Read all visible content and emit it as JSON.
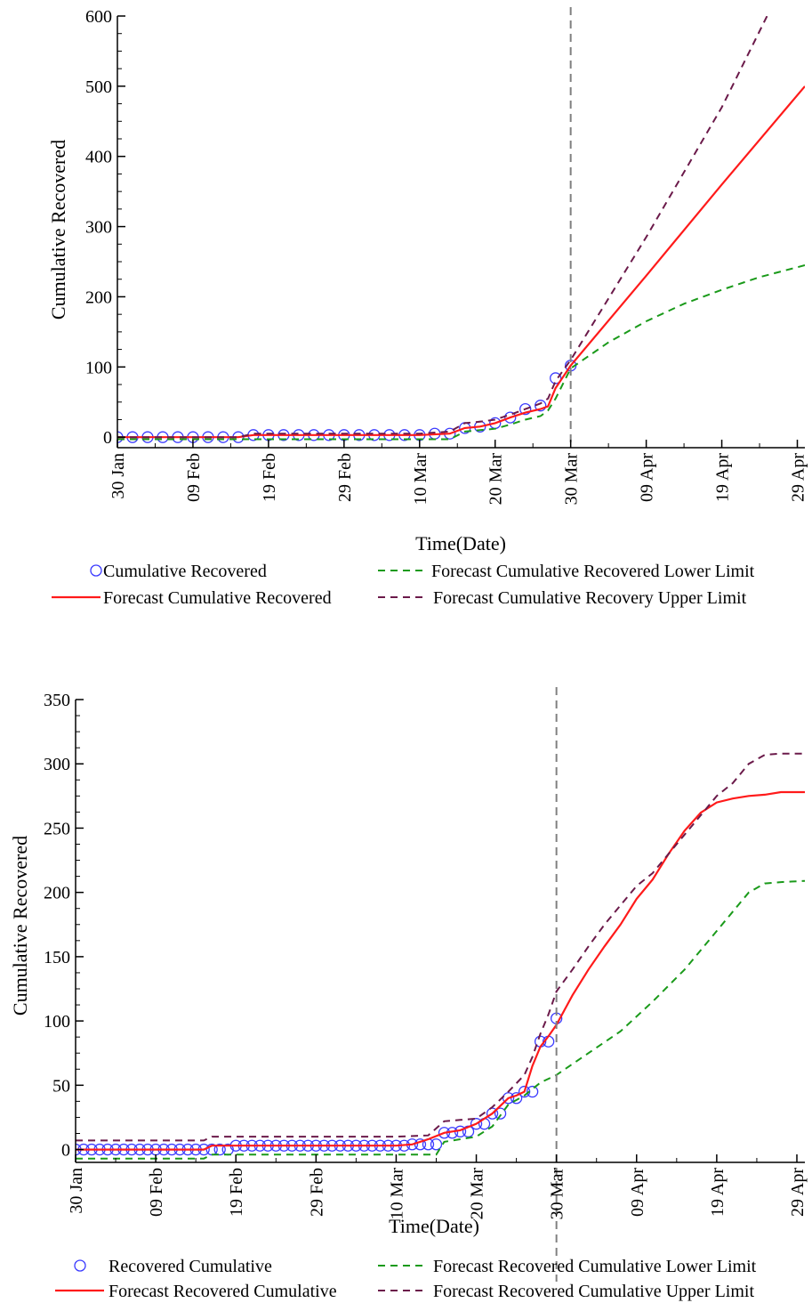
{
  "chart_data": [
    {
      "type": "line",
      "title": "",
      "xlabel": "Time(Date)",
      "ylabel": "Cumulative Recovered",
      "x_tick_labels": [
        "30 Jan",
        "09 Feb",
        "19 Feb",
        "29 Feb",
        "10 Mar",
        "20 Mar",
        "30 Mar",
        "09 Apr",
        "19 Apr",
        "29 Apr"
      ],
      "x_tick_days": [
        0,
        10,
        20,
        30,
        40,
        50,
        60,
        70,
        80,
        90
      ],
      "xlim": [
        0,
        91
      ],
      "y_ticks": [
        0,
        100,
        200,
        300,
        400,
        500,
        600
      ],
      "ylim": [
        -15,
        600
      ],
      "forecast_start_day": 60,
      "legend": [
        {
          "label": "Cumulative Recovered",
          "style": "circle"
        },
        {
          "label": "Forecast Cumulative Recovered Lower Limit",
          "style": "green-dash"
        },
        {
          "label": "Forecast Cumulative Recovered",
          "style": "red-solid"
        },
        {
          "label": "Forecast Cumulative Recovery Upper Limit",
          "style": "purple-dash"
        }
      ],
      "series": [
        {
          "name": "Cumulative Recovered",
          "kind": "points",
          "x": [
            0,
            2,
            4,
            6,
            8,
            10,
            12,
            14,
            16,
            18,
            20,
            22,
            24,
            26,
            28,
            30,
            32,
            34,
            36,
            38,
            40,
            42,
            44,
            46,
            48,
            50,
            52,
            54,
            56,
            58,
            60
          ],
          "y": [
            0,
            0,
            0,
            0,
            0,
            0,
            0,
            0,
            0,
            3,
            3,
            3,
            3,
            3,
            3,
            3,
            3,
            3,
            3,
            3,
            3,
            5,
            5,
            13,
            15,
            20,
            28,
            40,
            45,
            84,
            102
          ]
        },
        {
          "name": "Forecast Cumulative Recovered",
          "kind": "line",
          "x": [
            0,
            16,
            18,
            20,
            40,
            44,
            46,
            48,
            50,
            52,
            54,
            56,
            57,
            58,
            60,
            70,
            80,
            91
          ],
          "y": [
            0,
            0,
            3,
            3,
            3,
            5,
            13,
            15,
            20,
            28,
            35,
            40,
            44,
            70,
            102,
            230,
            360,
            500
          ]
        },
        {
          "name": "Forecast Cumulative Recovered Lower Limit",
          "kind": "line",
          "x": [
            0,
            44,
            46,
            48,
            50,
            52,
            54,
            56,
            57,
            58,
            60,
            65,
            70,
            75,
            80,
            85,
            91
          ],
          "y": [
            -3,
            -3,
            8,
            10,
            12,
            18,
            25,
            30,
            38,
            55,
            98,
            135,
            165,
            190,
            210,
            228,
            245
          ]
        },
        {
          "name": "Forecast Cumulative Recovery Upper Limit",
          "kind": "line",
          "x": [
            0,
            16,
            18,
            20,
            40,
            44,
            46,
            48,
            50,
            52,
            54,
            56,
            57,
            58,
            60,
            70,
            80,
            86
          ],
          "y": [
            0,
            0,
            5,
            5,
            5,
            8,
            20,
            22,
            25,
            32,
            40,
            48,
            55,
            80,
            110,
            285,
            470,
            600
          ]
        }
      ]
    },
    {
      "type": "line",
      "title": "",
      "xlabel": "Time(Date)",
      "ylabel": "Cumulative Recovered",
      "x_tick_labels": [
        "30 Jan",
        "09 Feb",
        "19 Feb",
        "29 Feb",
        "10 Mar",
        "20 Mar",
        "30 Mar",
        "09 Apr",
        "19 Apr",
        "29 Apr"
      ],
      "x_tick_days": [
        0,
        10,
        20,
        30,
        40,
        50,
        60,
        70,
        80,
        90
      ],
      "xlim": [
        0,
        91
      ],
      "y_ticks": [
        0,
        50,
        100,
        150,
        200,
        250,
        300,
        350
      ],
      "ylim": [
        -10,
        350
      ],
      "forecast_start_day": 60,
      "legend": [
        {
          "label": "Recovered Cumulative",
          "style": "circle"
        },
        {
          "label": "Forecast Recovered Cumulative Lower Limit",
          "style": "green-dash"
        },
        {
          "label": "Forecast Recovered Cumulative",
          "style": "red-solid"
        },
        {
          "label": "Forecast Recovered Cumulative Upper Limit",
          "style": "purple-dash"
        }
      ],
      "series": [
        {
          "name": "Recovered Cumulative",
          "kind": "points",
          "x": [
            0,
            1,
            2,
            3,
            4,
            5,
            6,
            7,
            8,
            9,
            10,
            11,
            12,
            13,
            14,
            15,
            16,
            17,
            18,
            19,
            20,
            21,
            22,
            23,
            24,
            25,
            26,
            27,
            28,
            29,
            30,
            31,
            32,
            33,
            34,
            35,
            36,
            37,
            38,
            39,
            40,
            41,
            42,
            43,
            44,
            45,
            46,
            47,
            48,
            49,
            50,
            51,
            52,
            53,
            54,
            55,
            56,
            57,
            58,
            59,
            60
          ],
          "y": [
            0,
            0,
            0,
            0,
            0,
            0,
            0,
            0,
            0,
            0,
            0,
            0,
            0,
            0,
            0,
            0,
            0,
            0,
            0,
            0,
            3,
            3,
            3,
            3,
            3,
            3,
            3,
            3,
            3,
            3,
            3,
            3,
            3,
            3,
            3,
            3,
            3,
            3,
            3,
            3,
            3,
            3,
            4,
            4,
            4,
            4,
            13,
            13,
            14,
            14,
            20,
            20,
            28,
            28,
            40,
            40,
            45,
            45,
            84,
            84,
            102
          ]
        },
        {
          "name": "Forecast Recovered Cumulative",
          "kind": "line",
          "x": [
            0,
            16,
            17,
            18,
            40,
            42,
            44,
            46,
            48,
            50,
            52,
            54,
            55,
            56,
            57,
            58,
            59,
            60,
            62,
            64,
            66,
            68,
            70,
            72,
            74,
            76,
            78,
            80,
            82,
            84,
            86,
            88,
            90,
            91
          ],
          "y": [
            0,
            0,
            3,
            3,
            3,
            4,
            8,
            13,
            15,
            20,
            28,
            40,
            42,
            45,
            65,
            80,
            88,
            97,
            120,
            140,
            158,
            175,
            195,
            210,
            230,
            248,
            262,
            270,
            273,
            275,
            276,
            278,
            278,
            278
          ]
        },
        {
          "name": "Forecast Recovered Cumulative Lower Limit",
          "kind": "line",
          "x": [
            0,
            16,
            17,
            18,
            44,
            45,
            46,
            48,
            50,
            52,
            54,
            56,
            58,
            60,
            64,
            68,
            72,
            76,
            80,
            84,
            86,
            88,
            91
          ],
          "y": [
            -7,
            -7,
            -4,
            -4,
            -4,
            -4,
            6,
            8,
            10,
            18,
            35,
            42,
            52,
            58,
            75,
            92,
            115,
            140,
            170,
            200,
            207,
            208,
            209
          ]
        },
        {
          "name": "Forecast Recovered Cumulative Upper Limit",
          "kind": "line",
          "x": [
            0,
            16,
            17,
            18,
            40,
            44,
            46,
            48,
            50,
            52,
            54,
            56,
            57,
            58,
            59,
            60,
            62,
            64,
            66,
            68,
            70,
            72,
            74,
            76,
            78,
            80,
            82,
            84,
            86,
            88,
            91
          ],
          "y": [
            7,
            7,
            10,
            10,
            10,
            11,
            22,
            23,
            24,
            33,
            45,
            58,
            72,
            90,
            105,
            123,
            140,
            158,
            175,
            190,
            205,
            215,
            230,
            245,
            260,
            275,
            285,
            300,
            307,
            308,
            308
          ]
        }
      ]
    }
  ]
}
